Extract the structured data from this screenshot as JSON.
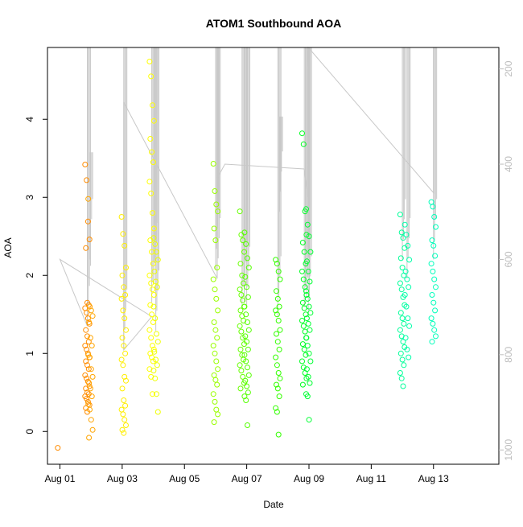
{
  "chart_data": {
    "type": "scatter",
    "title": "ATOM1 Southbound AOA",
    "xlabel": "Date",
    "ylabel": "AOA",
    "x_unit": "days since Aug 01",
    "xlim": [
      -0.4,
      14.1
    ],
    "ylim": [
      -0.42,
      4.92
    ],
    "x_ticks": [
      {
        "value": 0,
        "label": "Aug 01"
      },
      {
        "value": 2,
        "label": "Aug 03"
      },
      {
        "value": 4,
        "label": "Aug 05"
      },
      {
        "value": 6,
        "label": "Aug 07"
      },
      {
        "value": 8,
        "label": "Aug 09"
      },
      {
        "value": 10,
        "label": "Aug 11"
      },
      {
        "value": 12,
        "label": "Aug 13"
      }
    ],
    "y_ticks": [
      0,
      1,
      2,
      3,
      4
    ],
    "y2_ticks": [
      200,
      400,
      600,
      800,
      1000
    ],
    "y2_lim": [
      155,
      1030
    ],
    "colors": {
      "pressure_line": "#c8c8c8",
      "axis": "#000000",
      "axis_right": "#bdbdbd"
    },
    "groups": [
      {
        "x": 0.88,
        "color": "#ff8c00",
        "points": [
          3.42,
          3.22,
          2.69,
          2.46,
          2.35,
          1.65,
          1.62,
          1.58,
          1.52,
          1.45,
          1.38,
          1.3,
          1.22,
          1.15,
          1.1,
          1.05,
          1.0,
          0.95,
          0.9,
          0.85,
          0.8,
          0.72,
          0.68,
          0.64,
          0.58,
          0.55,
          0.5,
          0.48,
          0.45,
          0.42,
          0.38,
          0.34,
          0.3,
          0.25
        ]
      },
      {
        "x": 0.98,
        "color": "#ffa500",
        "points": [
          2.98,
          1.6,
          1.55,
          1.48,
          1.4,
          1.2,
          1.1,
          0.98,
          0.95,
          0.8,
          0.7,
          0.62,
          0.55,
          0.45,
          0.35,
          0.28,
          0.15,
          0.02,
          -0.08
        ]
      },
      {
        "x": 0.0,
        "color": "#ff8c00",
        "points": [
          -0.21
        ]
      },
      {
        "x": 2.05,
        "color": "#ffee00",
        "points": [
          2.75,
          2.53,
          2.38,
          2.1,
          2.0,
          1.85,
          1.75,
          1.7,
          1.55,
          1.45,
          1.3,
          1.2,
          1.1,
          1.0,
          0.92,
          0.85,
          0.7,
          0.65,
          0.55,
          0.4,
          0.33,
          0.28,
          0.22,
          0.15,
          0.08,
          0.02,
          -0.02
        ]
      },
      {
        "x": 2.95,
        "color": "#ffff00",
        "points": [
          4.74,
          4.55,
          4.18,
          3.98,
          3.75,
          3.58,
          3.45,
          3.2,
          3.05,
          2.8,
          2.6,
          2.45,
          2.3,
          2.15,
          2.0,
          1.9,
          1.82,
          1.75,
          1.62,
          1.5,
          1.4,
          1.3,
          1.2,
          1.1,
          1.05,
          1.0,
          0.95,
          0.9,
          0.8,
          0.7,
          0.48
        ]
      },
      {
        "x": 3.08,
        "color": "#eeff00",
        "points": [
          2.48,
          2.4,
          2.3,
          2.2,
          2.05,
          1.92,
          1.85,
          1.6,
          1.45,
          1.25,
          1.15,
          1.02,
          0.92,
          0.85,
          0.78,
          0.68,
          0.48,
          0.25
        ]
      },
      {
        "x": 5.0,
        "color": "#99ff00",
        "points": [
          3.43,
          3.08,
          2.91,
          2.82,
          2.6,
          2.45,
          2.1,
          1.95,
          1.82,
          1.7,
          1.55,
          1.4,
          1.3,
          1.2,
          1.1,
          1.0,
          0.9,
          0.8,
          0.72,
          0.66,
          0.6,
          0.48,
          0.38,
          0.28,
          0.22,
          0.12
        ]
      },
      {
        "x": 5.85,
        "color": "#66ff00",
        "points": [
          2.82,
          2.52,
          2.45,
          2.3,
          2.15,
          2.0,
          1.9,
          1.82,
          1.75,
          1.68,
          1.6,
          1.55,
          1.48,
          1.42,
          1.35,
          1.28,
          1.2,
          1.12,
          1.05,
          0.98,
          0.92,
          0.85,
          0.78,
          0.7,
          0.62,
          0.55
        ]
      },
      {
        "x": 6.0,
        "color": "#55ff00",
        "points": [
          2.55,
          2.4,
          2.22,
          2.1,
          1.98,
          1.85,
          1.72,
          1.6,
          1.5,
          1.4,
          1.3,
          1.22,
          1.15,
          1.05,
          0.98,
          0.9,
          0.82,
          0.72,
          0.65,
          0.58,
          0.5,
          0.45,
          0.4,
          0.08
        ]
      },
      {
        "x": 7.0,
        "color": "#33ff00",
        "points": [
          2.2,
          2.15,
          2.05,
          1.95,
          1.8,
          1.7,
          1.6,
          1.55,
          1.5,
          1.42,
          1.3,
          1.25,
          1.15,
          1.05,
          0.95,
          0.85,
          0.75,
          0.68,
          0.6,
          0.55,
          0.45,
          0.3,
          0.25,
          -0.04
        ]
      },
      {
        "x": 7.85,
        "color": "#00ff22",
        "points": [
          3.82,
          3.68,
          2.82,
          2.52,
          2.42,
          2.3,
          2.15,
          2.05,
          1.95,
          1.85,
          1.75,
          1.65,
          1.58,
          1.5,
          1.42,
          1.35,
          1.28,
          1.2,
          1.12,
          1.05,
          0.98,
          0.9,
          0.82,
          0.75,
          0.68,
          0.6
        ]
      },
      {
        "x": 7.98,
        "color": "#00ff33",
        "points": [
          2.85,
          2.65,
          2.5,
          2.3,
          2.18,
          2.05,
          1.92,
          1.8,
          1.7,
          1.6,
          1.52,
          1.45,
          1.38,
          1.3,
          1.2,
          1.1,
          1.0,
          0.9,
          0.8,
          0.7,
          0.62,
          0.48,
          0.45,
          0.15
        ]
      },
      {
        "x": 11.0,
        "color": "#00ff99",
        "points": [
          2.78,
          2.55,
          2.48,
          2.35,
          2.22,
          2.1,
          2.0,
          1.9,
          1.82,
          1.72,
          1.62,
          1.52,
          1.45,
          1.38,
          1.3,
          1.22,
          1.15,
          1.08,
          1.0,
          0.92,
          0.85,
          0.75,
          0.68,
          0.58
        ]
      },
      {
        "x": 11.15,
        "color": "#00ffaa",
        "points": [
          2.65,
          2.52,
          2.38,
          2.2,
          2.05,
          1.95,
          1.85,
          1.75,
          1.6,
          1.45,
          1.35,
          1.2,
          1.05,
          0.95
        ]
      },
      {
        "x": 12.0,
        "color": "#00ffbb",
        "points": [
          2.94,
          2.88,
          2.75,
          2.62,
          2.45,
          2.38,
          2.25,
          2.15,
          2.05,
          1.95,
          1.85,
          1.75,
          1.65,
          1.55,
          1.45,
          1.38,
          1.3,
          1.22,
          1.15
        ]
      }
    ],
    "profile_path": [
      [
        0.0,
        600
      ],
      [
        0.88,
        740
      ],
      [
        0.0,
        600
      ],
      [
        2.95,
        720
      ],
      [
        2.05,
        790
      ],
      [
        2.05,
        270
      ],
      [
        5.05,
        640
      ],
      [
        5.05,
        430
      ],
      [
        5.3,
        400
      ],
      [
        7.85,
        410
      ],
      [
        7.95,
        470
      ],
      [
        7.95,
        200
      ],
      [
        7.98,
        155
      ],
      [
        12.0,
        460
      ],
      [
        12.0,
        155
      ]
    ],
    "profile_spikes": [
      {
        "x": 0.88,
        "top": 155,
        "bottom": 740
      },
      {
        "x": 0.95,
        "top": 375,
        "bottom": 600
      },
      {
        "x": 2.05,
        "top": 155,
        "bottom": 790
      },
      {
        "x": 2.95,
        "top": 155,
        "bottom": 690
      },
      {
        "x": 3.02,
        "top": 155,
        "bottom": 650
      },
      {
        "x": 3.08,
        "top": 155,
        "bottom": 750
      },
      {
        "x": 5.0,
        "top": 155,
        "bottom": 620
      },
      {
        "x": 5.05,
        "top": 155,
        "bottom": 640
      },
      {
        "x": 5.85,
        "top": 155,
        "bottom": 700
      },
      {
        "x": 5.92,
        "top": 155,
        "bottom": 690
      },
      {
        "x": 6.0,
        "top": 155,
        "bottom": 700
      },
      {
        "x": 7.0,
        "top": 155,
        "bottom": 720
      },
      {
        "x": 7.05,
        "top": 300,
        "bottom": 500
      },
      {
        "x": 7.85,
        "top": 155,
        "bottom": 700
      },
      {
        "x": 7.92,
        "top": 155,
        "bottom": 680
      },
      {
        "x": 7.98,
        "top": 155,
        "bottom": 720
      },
      {
        "x": 11.0,
        "top": 155,
        "bottom": 600
      },
      {
        "x": 11.15,
        "top": 155,
        "bottom": 640
      },
      {
        "x": 12.0,
        "top": 155,
        "bottom": 600
      }
    ]
  }
}
